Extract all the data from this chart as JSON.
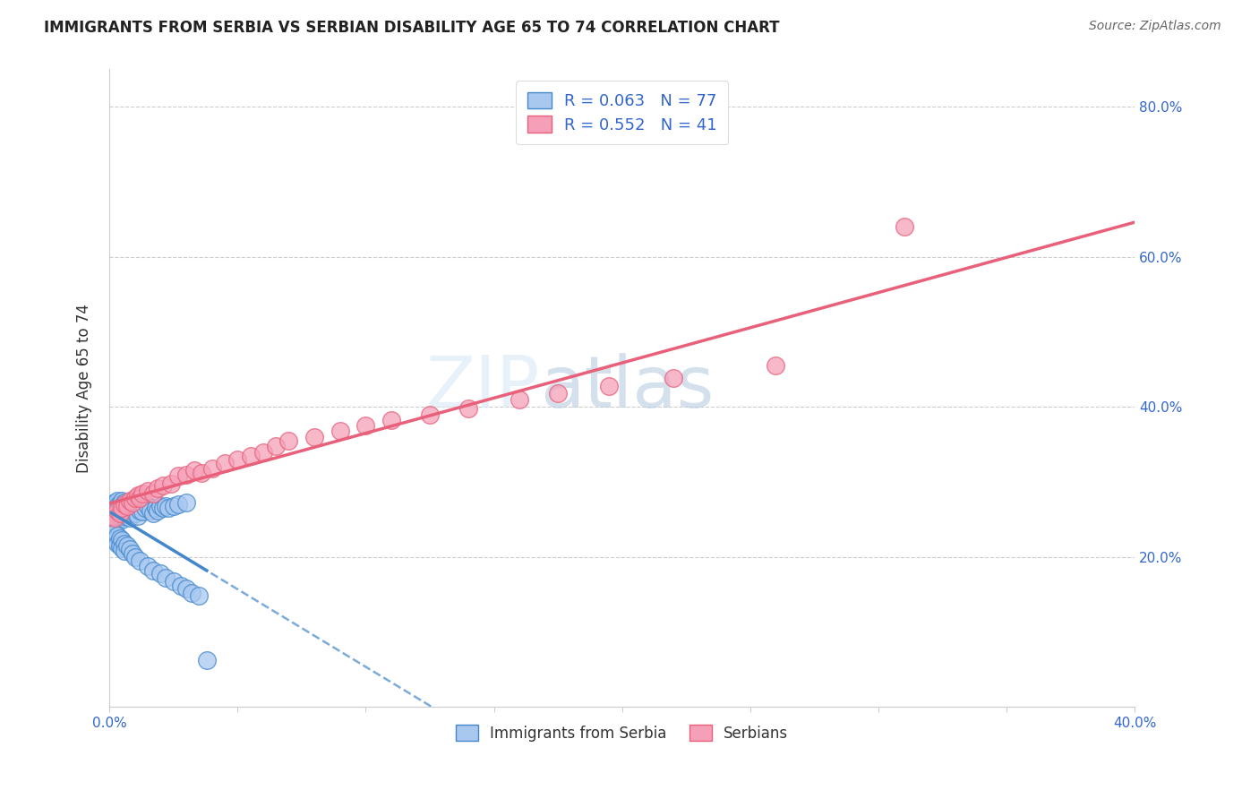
{
  "title": "IMMIGRANTS FROM SERBIA VS SERBIAN DISABILITY AGE 65 TO 74 CORRELATION CHART",
  "source": "Source: ZipAtlas.com",
  "ylabel": "Disability Age 65 to 74",
  "xlim": [
    0.0,
    0.4
  ],
  "ylim": [
    0.0,
    0.85
  ],
  "xtick_positions": [
    0.0,
    0.05,
    0.1,
    0.15,
    0.2,
    0.25,
    0.3,
    0.35,
    0.4
  ],
  "xticklabels": [
    "0.0%",
    "",
    "",
    "",
    "",
    "",
    "",
    "",
    "40.0%"
  ],
  "ytick_positions": [
    0.0,
    0.2,
    0.4,
    0.6,
    0.8
  ],
  "yticklabels_right": [
    "",
    "20.0%",
    "40.0%",
    "60.0%",
    "80.0%"
  ],
  "legend_labels": [
    "Immigrants from Serbia",
    "Serbians"
  ],
  "series1_label": "R = 0.063   N = 77",
  "series2_label": "R = 0.552   N = 41",
  "color1": "#a8c8f0",
  "color2": "#f5a0b8",
  "trendline1_color": "#4488cc",
  "trendline2_color": "#e8607a",
  "watermark": "ZIPatlas",
  "scatter1_x": [
    0.001,
    0.001,
    0.001,
    0.001,
    0.001,
    0.002,
    0.002,
    0.002,
    0.002,
    0.002,
    0.003,
    0.003,
    0.003,
    0.003,
    0.004,
    0.004,
    0.004,
    0.005,
    0.005,
    0.005,
    0.005,
    0.006,
    0.006,
    0.006,
    0.007,
    0.007,
    0.008,
    0.008,
    0.008,
    0.009,
    0.009,
    0.01,
    0.01,
    0.011,
    0.011,
    0.012,
    0.013,
    0.014,
    0.015,
    0.016,
    0.017,
    0.018,
    0.019,
    0.02,
    0.021,
    0.022,
    0.023,
    0.025,
    0.027,
    0.03,
    0.001,
    0.001,
    0.002,
    0.002,
    0.003,
    0.003,
    0.004,
    0.004,
    0.005,
    0.005,
    0.006,
    0.006,
    0.007,
    0.008,
    0.009,
    0.01,
    0.012,
    0.015,
    0.017,
    0.02,
    0.022,
    0.025,
    0.028,
    0.03,
    0.032,
    0.035,
    0.038
  ],
  "scatter1_y": [
    0.27,
    0.265,
    0.255,
    0.248,
    0.245,
    0.272,
    0.268,
    0.26,
    0.252,
    0.242,
    0.275,
    0.268,
    0.258,
    0.248,
    0.27,
    0.262,
    0.252,
    0.275,
    0.268,
    0.26,
    0.25,
    0.272,
    0.265,
    0.255,
    0.27,
    0.26,
    0.268,
    0.26,
    0.252,
    0.265,
    0.258,
    0.268,
    0.258,
    0.265,
    0.255,
    0.262,
    0.26,
    0.265,
    0.268,
    0.262,
    0.258,
    0.265,
    0.262,
    0.268,
    0.265,
    0.268,
    0.265,
    0.268,
    0.27,
    0.272,
    0.235,
    0.225,
    0.232,
    0.222,
    0.228,
    0.218,
    0.225,
    0.215,
    0.222,
    0.212,
    0.218,
    0.208,
    0.215,
    0.21,
    0.205,
    0.2,
    0.195,
    0.188,
    0.182,
    0.178,
    0.172,
    0.168,
    0.162,
    0.158,
    0.152,
    0.148,
    0.062
  ],
  "scatter2_x": [
    0.001,
    0.002,
    0.003,
    0.004,
    0.005,
    0.006,
    0.007,
    0.008,
    0.009,
    0.01,
    0.011,
    0.012,
    0.013,
    0.015,
    0.017,
    0.019,
    0.021,
    0.024,
    0.027,
    0.03,
    0.033,
    0.036,
    0.04,
    0.045,
    0.05,
    0.055,
    0.06,
    0.065,
    0.07,
    0.08,
    0.09,
    0.1,
    0.11,
    0.125,
    0.14,
    0.16,
    0.175,
    0.195,
    0.22,
    0.26,
    0.31
  ],
  "scatter2_y": [
    0.255,
    0.252,
    0.262,
    0.258,
    0.265,
    0.27,
    0.268,
    0.275,
    0.272,
    0.278,
    0.282,
    0.278,
    0.285,
    0.288,
    0.285,
    0.292,
    0.295,
    0.298,
    0.308,
    0.31,
    0.315,
    0.312,
    0.318,
    0.325,
    0.33,
    0.335,
    0.34,
    0.348,
    0.355,
    0.36,
    0.368,
    0.375,
    0.382,
    0.39,
    0.398,
    0.41,
    0.418,
    0.428,
    0.438,
    0.455,
    0.64
  ]
}
